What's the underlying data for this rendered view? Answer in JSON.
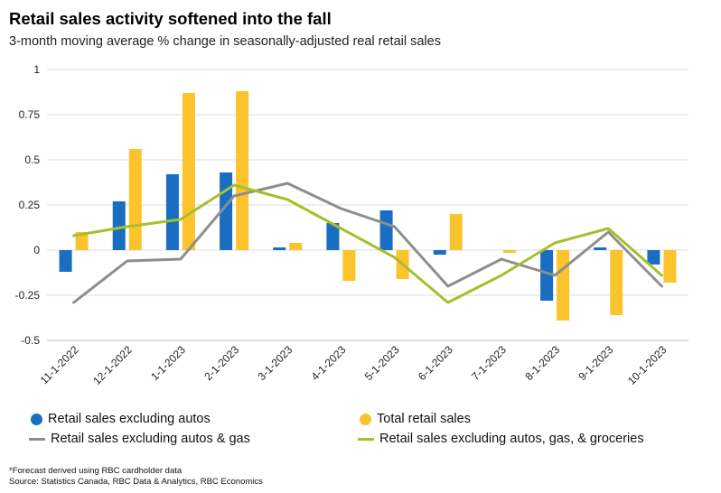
{
  "title": "Retail sales activity softened into the fall",
  "subtitle": "3-month moving average % change in seasonally-adjusted real retail sales",
  "footnote": "*Forecast derived using RBC cardholder data",
  "source": "Source: Statistics Canada, RBC Data & Analytics, RBC Economics",
  "colors": {
    "blue": "#1a6ec2",
    "yellow": "#fcc42c",
    "gray": "#8c8f8c",
    "green": "#a6bf2a"
  },
  "legend": {
    "s1": "Retail sales excluding autos",
    "s2": "Total retail sales",
    "s3": "Retail sales excluding autos & gas",
    "s4": "Retail sales excluding autos, gas, & groceries"
  },
  "chart_data": {
    "type": "bar",
    "categories": [
      "11-1-2022",
      "12-1-2022",
      "1-1-2023",
      "2-1-2023",
      "3-1-2023",
      "4-1-2023",
      "5-1-2023",
      "6-1-2023",
      "7-1-2023",
      "8-1-2023",
      "9-1-2023",
      "10-1-2023"
    ],
    "ylim": [
      -0.5,
      1
    ],
    "yticks": [
      -0.5,
      -0.25,
      0,
      0.25,
      0.5,
      0.75,
      1
    ],
    "ytick_labels": [
      "-0.5",
      "-0.25",
      "0",
      "0.25",
      "0.5",
      "0.75",
      "1"
    ],
    "grid": true,
    "series": [
      {
        "name": "Retail sales excluding autos",
        "kind": "bar",
        "color": "#1a6ec2",
        "values": [
          -0.12,
          0.27,
          0.42,
          0.43,
          0.015,
          0.15,
          0.22,
          -0.025,
          0.0,
          -0.28,
          0.015,
          -0.08
        ]
      },
      {
        "name": "Total retail sales",
        "kind": "bar",
        "color": "#fcc42c",
        "values": [
          0.1,
          0.56,
          0.87,
          0.88,
          0.04,
          -0.17,
          -0.16,
          0.2,
          -0.015,
          -0.39,
          -0.36,
          -0.18
        ]
      },
      {
        "name": "Retail sales excluding autos & gas",
        "kind": "line",
        "color": "#8c8f8c",
        "values": [
          -0.29,
          -0.06,
          -0.05,
          0.3,
          0.37,
          0.23,
          0.13,
          -0.2,
          -0.05,
          -0.14,
          0.1,
          -0.2
        ]
      },
      {
        "name": "Retail sales excluding autos, gas, & groceries",
        "kind": "line",
        "color": "#a6bf2a",
        "values": [
          0.08,
          0.13,
          0.17,
          0.36,
          0.28,
          0.12,
          -0.04,
          -0.29,
          -0.14,
          0.04,
          0.12,
          -0.14
        ]
      }
    ]
  }
}
